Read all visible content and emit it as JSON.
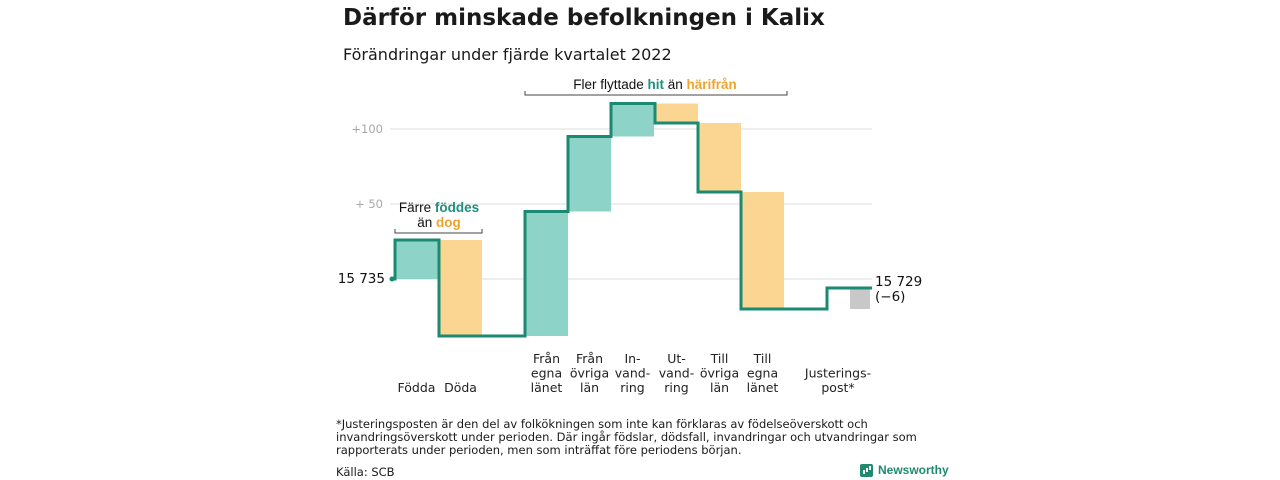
{
  "title": "Därför minskade befolkningen i Kalix",
  "subtitle": "Förändringar under fjärde kvartalet 2022",
  "colors": {
    "positive": "#8dd3c7",
    "negative": "#fbd692",
    "adjustment": "#c8c8c8",
    "line": "#1a8a72",
    "accent_teal": "#1f8f7f",
    "accent_orange": "#f0a430"
  },
  "chart_data": {
    "type": "waterfall",
    "start": {
      "value": 15735,
      "label": "15 735"
    },
    "end": {
      "value": 15729,
      "label": "15 729",
      "change_label": "(−6)"
    },
    "y_ticks": [
      {
        "value": 100,
        "label": "+100"
      },
      {
        "value": 50,
        "label": "+ 50"
      },
      {
        "value": 0,
        "label": ""
      }
    ],
    "ylim": [
      -45,
      120
    ],
    "steps": [
      {
        "label": [
          "Födda"
        ],
        "change": 26,
        "kind": "positive"
      },
      {
        "label": [
          "Döda"
        ],
        "change": -64,
        "kind": "negative"
      },
      {
        "label": [
          "Från",
          "egna",
          "länet"
        ],
        "change": 83,
        "kind": "positive"
      },
      {
        "label": [
          "Från",
          "övriga",
          "län"
        ],
        "change": 50,
        "kind": "positive"
      },
      {
        "label": [
          "In-",
          "vand-",
          "ring"
        ],
        "change": 22,
        "kind": "positive"
      },
      {
        "label": [
          "Ut-",
          "vand-",
          "ring"
        ],
        "change": -13,
        "kind": "negative"
      },
      {
        "label": [
          "Till",
          "övriga",
          "län"
        ],
        "change": -46,
        "kind": "negative"
      },
      {
        "label": [
          "Till",
          "egna",
          "länet"
        ],
        "change": -78,
        "kind": "negative"
      },
      {
        "label": [
          "Justerings-",
          "post*"
        ],
        "change": 14,
        "kind": "adjustment"
      }
    ],
    "annotations": [
      {
        "lines": [
          [
            {
              "text": "Färre "
            },
            {
              "text": "föddes",
              "style": "teal"
            }
          ],
          [
            {
              "text": "än "
            },
            {
              "text": "dog",
              "style": "orange"
            }
          ]
        ]
      },
      {
        "lines": [
          [
            {
              "text": "Fler flyttade "
            },
            {
              "text": "hit",
              "style": "teal"
            },
            {
              "text": " än "
            },
            {
              "text": "härifrån",
              "style": "orange"
            }
          ]
        ]
      }
    ]
  },
  "footnote": "*Justeringsposten är den del av folkökningen som inte kan förklaras av födelseöverskott och invandringsöverskott under perioden. Där ingår födslar, dödsfall, invandringar och utvandringar som rapporterats under perioden, men som inträffat före periodens början.",
  "source": "Källa: SCB",
  "brand": {
    "name": "Newsworthy",
    "icon": "bar-chart-icon"
  }
}
